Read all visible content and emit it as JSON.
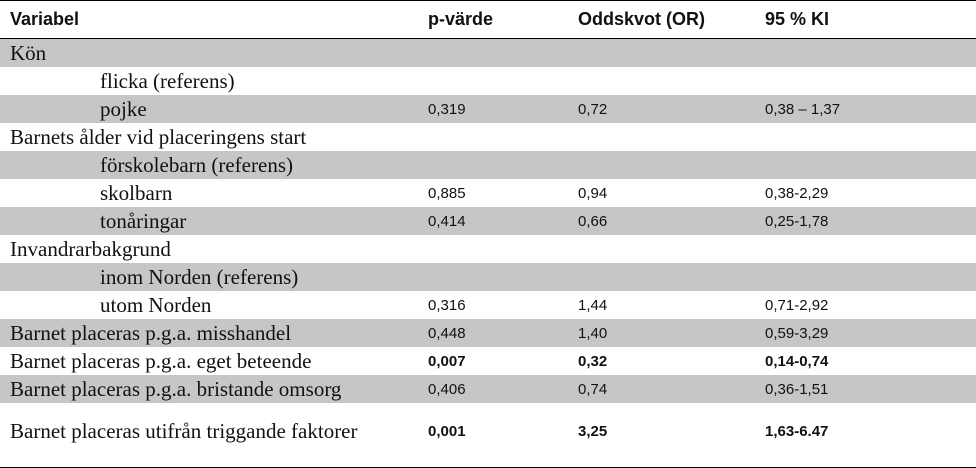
{
  "headers": {
    "variable": "Variabel",
    "p_value": "p-värde",
    "odds_ratio": "Oddskvot (OR)",
    "ci": "95 % KI"
  },
  "rows": [
    {
      "label": "Kön",
      "indent": false,
      "p": "",
      "or": "",
      "ci": "",
      "bold": false
    },
    {
      "label": "flicka (referens)",
      "indent": true,
      "p": "",
      "or": "",
      "ci": "",
      "bold": false
    },
    {
      "label": "pojke",
      "indent": true,
      "p": "0,319",
      "or": "0,72",
      "ci": "0,38 – 1,37",
      "bold": false
    },
    {
      "label": "Barnets ålder vid placeringens start",
      "indent": false,
      "p": "",
      "or": "",
      "ci": "",
      "bold": false
    },
    {
      "label": "förskolebarn (referens)",
      "indent": true,
      "p": "",
      "or": "",
      "ci": "",
      "bold": false
    },
    {
      "label": "skolbarn",
      "indent": true,
      "p": "0,885",
      "or": "0,94",
      "ci": "0,38-2,29",
      "bold": false
    },
    {
      "label": "tonåringar",
      "indent": true,
      "p": "0,414",
      "or": "0,66",
      "ci": "0,25-1,78",
      "bold": false
    },
    {
      "label": "Invandrarbakgrund",
      "indent": false,
      "p": "",
      "or": "",
      "ci": "",
      "bold": false
    },
    {
      "label": "inom Norden (referens)",
      "indent": true,
      "p": "",
      "or": "",
      "ci": "",
      "bold": false
    },
    {
      "label": "utom Norden",
      "indent": true,
      "p": "0,316",
      "or": "1,44",
      "ci": "0,71-2,92",
      "bold": false
    },
    {
      "label": "Barnet placeras p.g.a. misshandel",
      "indent": false,
      "p": "0,448",
      "or": "1,40",
      "ci": "0,59-3,29",
      "bold": false
    },
    {
      "label": "Barnet placeras p.g.a. eget beteende",
      "indent": false,
      "p": "0,007",
      "or": "0,32",
      "ci": "0,14-0,74",
      "bold": true
    },
    {
      "label": "Barnet placeras p.g.a. bristande omsorg",
      "indent": false,
      "p": "0,406",
      "or": "0,74",
      "ci": "0,36-1,51",
      "bold": false
    },
    {
      "label": "Barnet placeras utifrån triggande faktorer",
      "indent": false,
      "p": "0,001",
      "or": "3,25",
      "ci": "1,63-6.47",
      "bold": true
    }
  ]
}
